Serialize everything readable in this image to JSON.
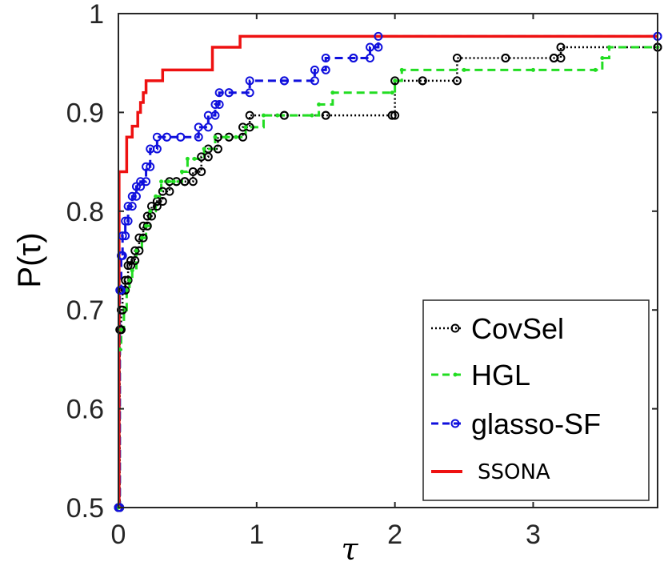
{
  "chart_data": {
    "type": "line",
    "title": "",
    "xlabel": "τ",
    "ylabel": "P(τ)",
    "xlim": [
      0,
      3.9
    ],
    "ylim": [
      0.5,
      1.0
    ],
    "xticks": [
      0,
      1,
      2,
      3
    ],
    "xtick_labels": [
      "0",
      "1",
      "2",
      "3"
    ],
    "yticks": [
      0.5,
      0.6,
      0.7,
      0.8,
      0.9,
      1.0
    ],
    "ytick_labels": [
      "0.5",
      "0.6",
      "0.7",
      "0.8",
      "0.9",
      "1"
    ],
    "grid": false,
    "legend_position": "bottom-right",
    "series": [
      {
        "name": "CovSel",
        "color": "#000000",
        "line": "dotted",
        "marker": "circle",
        "x": [
          0,
          0.01,
          0.02,
          0.03,
          0.05,
          0.07,
          0.09,
          0.12,
          0.15,
          0.18,
          0.21,
          0.24,
          0.28,
          0.32,
          0.37,
          0.42,
          0.48,
          0.54,
          0.6,
          0.65,
          0.72,
          0.8,
          0.9,
          0.95,
          1.2,
          1.5,
          1.98,
          2.0,
          2.2,
          2.45,
          2.8,
          3.15,
          3.2,
          3.9
        ],
        "y": [
          0.5,
          0.68,
          0.7,
          0.72,
          0.73,
          0.745,
          0.75,
          0.76,
          0.773,
          0.785,
          0.795,
          0.805,
          0.81,
          0.82,
          0.83,
          0.83,
          0.83,
          0.84,
          0.855,
          0.863,
          0.875,
          0.875,
          0.885,
          0.897,
          0.897,
          0.897,
          0.897,
          0.932,
          0.932,
          0.955,
          0.955,
          0.955,
          0.966,
          0.966
        ]
      },
      {
        "name": "HGL",
        "color": "#22dd22",
        "line": "dashed",
        "marker": "dot",
        "x": [
          0,
          0.01,
          0.02,
          0.04,
          0.06,
          0.08,
          0.1,
          0.13,
          0.17,
          0.2,
          0.23,
          0.27,
          0.31,
          0.36,
          0.4,
          0.46,
          0.5,
          0.55,
          0.62,
          0.7,
          0.78,
          0.85,
          0.92,
          1.05,
          1.15,
          1.4,
          1.45,
          1.55,
          1.98,
          2.0,
          2.05,
          2.5,
          3.0,
          3.45,
          3.5,
          3.55,
          3.9
        ],
        "y": [
          0.5,
          0.66,
          0.68,
          0.7,
          0.72,
          0.73,
          0.74,
          0.76,
          0.773,
          0.785,
          0.8,
          0.815,
          0.83,
          0.83,
          0.83,
          0.84,
          0.853,
          0.853,
          0.863,
          0.875,
          0.875,
          0.875,
          0.885,
          0.897,
          0.897,
          0.897,
          0.908,
          0.92,
          0.92,
          0.932,
          0.943,
          0.943,
          0.943,
          0.943,
          0.955,
          0.966,
          0.966
        ]
      },
      {
        "name": "glasso-SF",
        "color": "#1010dd",
        "line": "dashed",
        "marker": "circle",
        "x": [
          0,
          0.01,
          0.02,
          0.03,
          0.05,
          0.07,
          0.1,
          0.13,
          0.16,
          0.2,
          0.23,
          0.28,
          0.35,
          0.45,
          0.58,
          0.65,
          0.7,
          0.73,
          0.8,
          0.95,
          1.2,
          1.42,
          1.5,
          1.7,
          1.82,
          1.88,
          3.9
        ],
        "y": [
          0.5,
          0.72,
          0.755,
          0.775,
          0.79,
          0.805,
          0.815,
          0.825,
          0.83,
          0.845,
          0.863,
          0.875,
          0.875,
          0.875,
          0.885,
          0.897,
          0.908,
          0.92,
          0.92,
          0.932,
          0.932,
          0.943,
          0.955,
          0.955,
          0.966,
          0.977,
          0.977
        ]
      },
      {
        "name": "SSONA",
        "color": "#ee1111",
        "line": "solid",
        "marker": "none",
        "x": [
          0,
          0.005,
          0.06,
          0.1,
          0.14,
          0.16,
          0.18,
          0.2,
          0.25,
          0.32,
          0.5,
          0.68,
          0.75,
          0.88,
          3.9
        ],
        "y": [
          0.5,
          0.84,
          0.875,
          0.886,
          0.9,
          0.91,
          0.92,
          0.932,
          0.932,
          0.943,
          0.943,
          0.966,
          0.966,
          0.977,
          0.977
        ]
      }
    ]
  }
}
